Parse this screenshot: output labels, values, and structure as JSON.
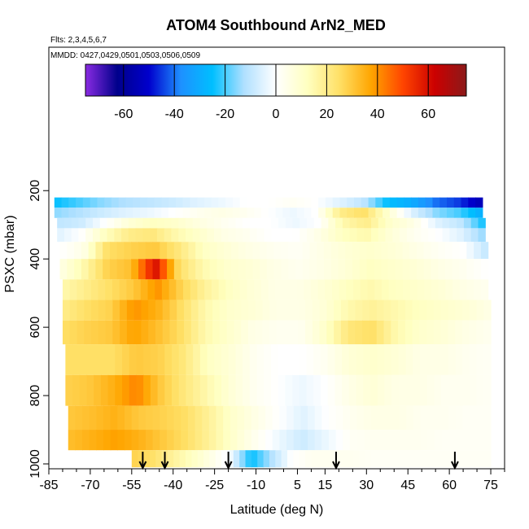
{
  "chart_data": {
    "type": "heatmap",
    "title": "ATOM4 Southbound ArN2_MED",
    "subtitle_flights": "Flts: 2,3,4,5,6,7",
    "subtitle_dates": "MMDD: 0427,0429,0501,0503,0506,0509",
    "xlabel": "Latitude (deg N)",
    "ylabel": "PSXC (mbar)",
    "xlim": [
      -85,
      80
    ],
    "ylim": [
      1000,
      100
    ],
    "x_ticks": [
      -85,
      -70,
      -55,
      -40,
      -25,
      -10,
      5,
      15,
      30,
      45,
      60,
      75
    ],
    "x_tick_labels": [
      "-85",
      "-70",
      "-55",
      "-40",
      "-25",
      "-10",
      "5",
      "15",
      "30",
      "45",
      "60",
      "75"
    ],
    "x_minor_step": 5,
    "y_ticks": [
      200,
      400,
      600,
      800,
      1000
    ],
    "y_tick_labels": [
      "200",
      "400",
      "600",
      "800",
      "1000"
    ],
    "colorbar": {
      "range": [
        -75,
        75
      ],
      "ticks": [
        -60,
        -40,
        -20,
        0,
        20,
        40,
        60
      ],
      "tick_labels": [
        "-60",
        "-40",
        "-20",
        "0",
        "20",
        "40",
        "60"
      ],
      "colors": [
        "#8a2be2",
        "#00008b",
        "#0000cd",
        "#1e90ff",
        "#00bfff",
        "#b0e0ff",
        "#ffffff",
        "#ffffc0",
        "#ffe066",
        "#ffa500",
        "#ff4500",
        "#cc0000",
        "#8b1a1a"
      ]
    },
    "profiles": [
      {
        "p_top": 220,
        "p_bot": 250,
        "lat_start": -83,
        "lat_end": 72,
        "v": [
          -25,
          -20,
          -15,
          -12,
          -10,
          -8,
          -5,
          -3,
          0,
          0,
          2,
          0,
          -5,
          -10,
          -25,
          -30,
          -40,
          -45,
          -55
        ]
      },
      {
        "p_top": 250,
        "p_bot": 280,
        "lat_start": -83,
        "lat_end": 72,
        "v": [
          -15,
          -12,
          -8,
          -5,
          -3,
          0,
          3,
          5,
          3,
          0,
          -3,
          0,
          20,
          25,
          10,
          -5,
          -15,
          -20,
          -30
        ]
      },
      {
        "p_top": 280,
        "p_bot": 310,
        "lat_start": -82,
        "lat_end": 73,
        "v": [
          -10,
          -8,
          0,
          8,
          12,
          10,
          6,
          3,
          0,
          0,
          -3,
          0,
          15,
          20,
          10,
          5,
          -5,
          -10,
          -25
        ]
      },
      {
        "p_top": 310,
        "p_bot": 350,
        "lat_start": -82,
        "lat_end": 73,
        "v": [
          -5,
          0,
          12,
          20,
          22,
          15,
          10,
          5,
          3,
          0,
          0,
          5,
          12,
          15,
          8,
          3,
          0,
          -5,
          -15
        ]
      },
      {
        "p_top": 350,
        "p_bot": 400,
        "lat_start": -81,
        "lat_end": 74,
        "v": [
          0,
          5,
          25,
          28,
          30,
          22,
          12,
          8,
          5,
          3,
          2,
          5,
          8,
          10,
          8,
          5,
          2,
          0,
          -10
        ]
      },
      {
        "p_top": 400,
        "p_bot": 460,
        "lat_start": -81,
        "lat_end": 74,
        "v": [
          5,
          15,
          28,
          32,
          60,
          25,
          15,
          10,
          8,
          5,
          3,
          5,
          8,
          12,
          10,
          8,
          5,
          3,
          0
        ]
      },
      {
        "p_top": 460,
        "p_bot": 520,
        "lat_start": -80,
        "lat_end": 74,
        "v": [
          15,
          20,
          25,
          30,
          40,
          28,
          18,
          12,
          8,
          5,
          5,
          8,
          12,
          15,
          12,
          10,
          8,
          5,
          3
        ]
      },
      {
        "p_top": 520,
        "p_bot": 580,
        "lat_start": -80,
        "lat_end": 75,
        "v": [
          20,
          25,
          28,
          40,
          35,
          25,
          15,
          10,
          8,
          5,
          5,
          8,
          15,
          18,
          15,
          12,
          10,
          8,
          5
        ]
      },
      {
        "p_top": 580,
        "p_bot": 650,
        "lat_start": -80,
        "lat_end": 75,
        "v": [
          25,
          28,
          30,
          38,
          32,
          25,
          15,
          10,
          5,
          3,
          3,
          10,
          22,
          25,
          15,
          10,
          8,
          5,
          3
        ]
      },
      {
        "p_top": 650,
        "p_bot": 740,
        "lat_start": -79,
        "lat_end": 75,
        "v": [
          25,
          25,
          25,
          30,
          28,
          22,
          12,
          8,
          3,
          0,
          0,
          3,
          8,
          10,
          8,
          5,
          5,
          3,
          2
        ]
      },
      {
        "p_top": 740,
        "p_bot": 830,
        "lat_start": -79,
        "lat_end": 75,
        "v": [
          28,
          30,
          35,
          42,
          30,
          22,
          15,
          8,
          3,
          0,
          -3,
          0,
          5,
          8,
          5,
          5,
          3,
          3,
          2
        ]
      },
      {
        "p_top": 830,
        "p_bot": 900,
        "lat_start": -78,
        "lat_end": 75,
        "v": [
          30,
          32,
          35,
          30,
          28,
          25,
          18,
          10,
          5,
          0,
          -5,
          0,
          3,
          5,
          5,
          3,
          3,
          2,
          2
        ]
      },
      {
        "p_top": 900,
        "p_bot": 960,
        "lat_start": -78,
        "lat_end": 75,
        "v": [
          32,
          35,
          38,
          35,
          30,
          25,
          18,
          10,
          3,
          -3,
          -8,
          -3,
          2,
          3,
          3,
          3,
          2,
          2,
          2
        ]
      },
      {
        "p_top": 960,
        "p_bot": 1010,
        "lat_start": -55,
        "lat_end": 75,
        "v": [
          28,
          25,
          18,
          12,
          5,
          -3,
          -25,
          -12,
          0,
          3,
          3,
          3,
          2,
          2,
          2,
          2,
          2,
          2,
          2
        ]
      }
    ],
    "arrow_latitudes": [
      -51,
      -43,
      -20,
      19,
      62
    ]
  }
}
